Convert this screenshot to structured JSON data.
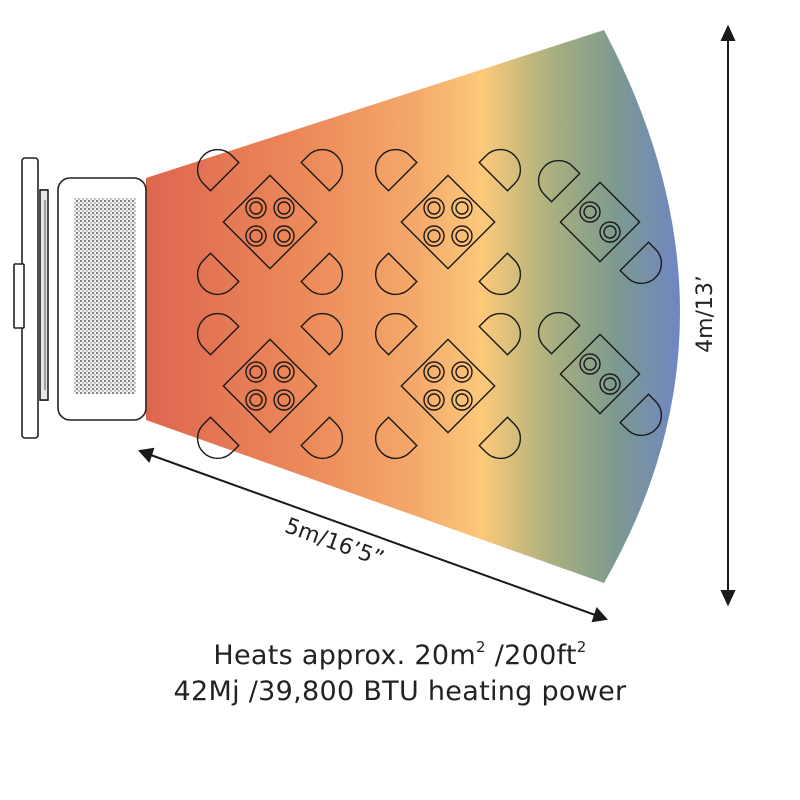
{
  "dimensions": {
    "length_label": "5m/16’5”",
    "width_label": "4m/13’"
  },
  "caption": {
    "line1": {
      "text_a": "Heats approx. 20m",
      "sup_a": "2",
      "text_b": " /200ft",
      "sup_b": "2"
    },
    "line2": "42Mj /39,800 BTU heating power"
  },
  "colors": {
    "gradient": [
      "#de6650",
      "#ec8a5a",
      "#f4a86a",
      "#fcc97a",
      "#a9b07f",
      "#7d9a8f",
      "#6f86c4"
    ],
    "outline": "#222222"
  },
  "icons": {
    "heater": "patio-heater-icon",
    "tables": "table-with-chairs-icon",
    "arrows": "double-headed-arrow-icon"
  }
}
